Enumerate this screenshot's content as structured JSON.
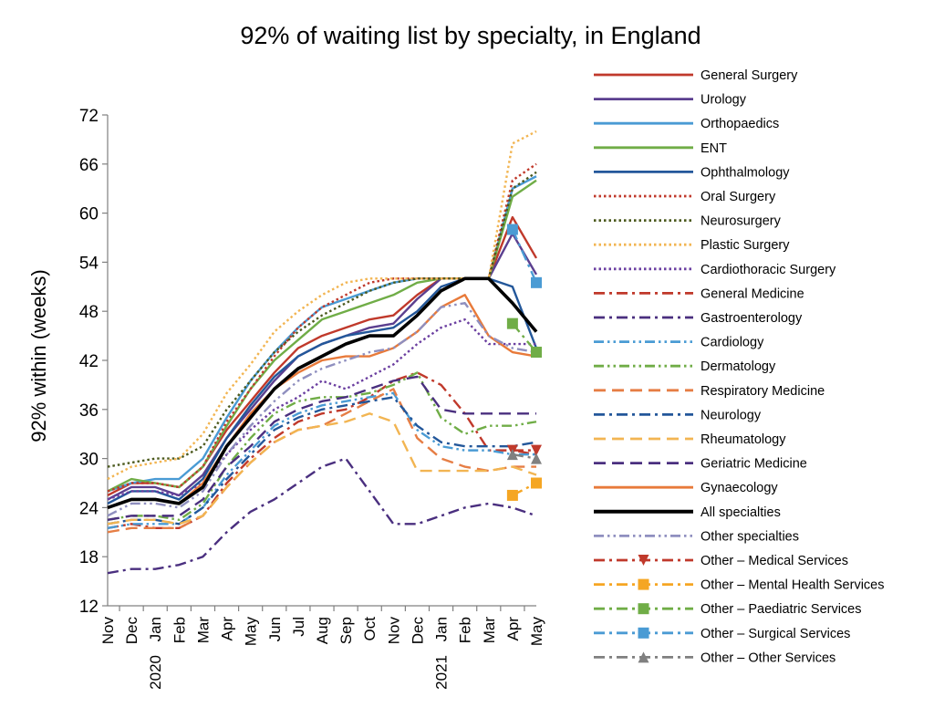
{
  "chart_data": {
    "type": "line",
    "title": "92% of waiting list by specialty, in England",
    "ylabel": "92% within (weeks)",
    "xlabel": "",
    "ylim": [
      12,
      72
    ],
    "yticks": [
      12,
      18,
      24,
      30,
      36,
      42,
      48,
      54,
      60,
      66,
      72
    ],
    "categories": [
      "Nov",
      "Dec",
      "Jan",
      "Feb",
      "Mar",
      "Apr",
      "May",
      "Jun",
      "Jul",
      "Aug",
      "Sep",
      "Oct",
      "Nov",
      "Dec",
      "Jan",
      "Feb",
      "Mar",
      "Apr",
      "May"
    ],
    "year_labels": [
      {
        "label": "2020",
        "at": "Jan"
      },
      {
        "label": "2021",
        "at": "Jan"
      }
    ],
    "grid": false,
    "legend_position": "right",
    "series": [
      {
        "name": "General Surgery",
        "color": "#c0392b",
        "dash": "solid",
        "values": [
          25.5,
          27,
          27,
          26.5,
          29,
          33.5,
          37,
          40.5,
          43.5,
          45,
          46,
          47,
          47.5,
          50,
          52,
          52,
          52,
          59.5,
          54.5
        ]
      },
      {
        "name": "Urology",
        "color": "#5b3f8f",
        "dash": "solid",
        "values": [
          25,
          26.5,
          26.5,
          25.5,
          28,
          32.5,
          36,
          39.5,
          42.5,
          44,
          45,
          46,
          46.5,
          49.5,
          52,
          52,
          52,
          57.5,
          52.5
        ]
      },
      {
        "name": "Orthopaedics",
        "color": "#4a9bd4",
        "dash": "solid",
        "values": [
          26,
          27,
          27.5,
          27.5,
          30,
          35,
          39.5,
          43,
          46,
          48.5,
          49.5,
          50.5,
          51.5,
          52,
          52,
          52,
          52,
          63,
          64.5
        ]
      },
      {
        "name": "ENT",
        "color": "#70ad47",
        "dash": "solid",
        "values": [
          26,
          27.5,
          27,
          26.5,
          29,
          34,
          38.5,
          42,
          44.5,
          47,
          48,
          49,
          50,
          51.5,
          52,
          52,
          52,
          62,
          64
        ]
      },
      {
        "name": "Ophthalmology",
        "color": "#23579a",
        "dash": "solid",
        "values": [
          24.5,
          26,
          26,
          25,
          27.5,
          32.5,
          36.5,
          40,
          42.5,
          44,
          45,
          45.5,
          46,
          48,
          51,
          52,
          52,
          51,
          43.5
        ]
      },
      {
        "name": "Oral Surgery",
        "color": "#c0392b",
        "dash": "dot",
        "values": [
          26,
          27,
          27,
          26.5,
          29,
          34.5,
          38.5,
          42.5,
          46,
          48.5,
          50,
          51.5,
          52,
          52,
          52,
          52,
          52,
          64,
          66
        ]
      },
      {
        "name": "Neurosurgery",
        "color": "#4c5a1e",
        "dash": "dot",
        "values": [
          29,
          29.5,
          30,
          30,
          31.5,
          36,
          39.5,
          43,
          45.5,
          47.5,
          49,
          50.5,
          51.5,
          52,
          52,
          52,
          52,
          63,
          65
        ]
      },
      {
        "name": "Plastic Surgery",
        "color": "#f2b552",
        "dash": "dot",
        "values": [
          27.5,
          29,
          29.5,
          30,
          33,
          38,
          41.5,
          45.5,
          48,
          50,
          51.5,
          52,
          52,
          52,
          52,
          52,
          52,
          68.5,
          70
        ]
      },
      {
        "name": "Cardiothoracic Surgery",
        "color": "#6b3fa0",
        "dash": "dot",
        "values": [
          25,
          26,
          26,
          25.5,
          27,
          30.5,
          33.5,
          36,
          37.5,
          39.5,
          38.5,
          40,
          41.5,
          44,
          46,
          47,
          44,
          44,
          44
        ]
      },
      {
        "name": "General Medicine",
        "color": "#c0392b",
        "dash": "dashdot",
        "values": [
          21.5,
          22,
          21.5,
          21.5,
          23,
          27,
          30,
          32.5,
          34.5,
          35.5,
          36,
          37.5,
          39.5,
          40.5,
          39,
          35.5,
          31,
          31,
          30.5
        ]
      },
      {
        "name": "Gastroenterology",
        "color": "#4a2f7f",
        "dash": "dashdot",
        "values": [
          16,
          16.5,
          16.5,
          17,
          18,
          21,
          23.5,
          25,
          27,
          29,
          30,
          26,
          22,
          22,
          23,
          24,
          24.5,
          24,
          23
        ]
      },
      {
        "name": "Cardiology",
        "color": "#4a9bd4",
        "dash": "dashdotdot",
        "values": [
          21.5,
          22,
          22,
          22,
          24,
          28,
          31,
          34,
          35.5,
          36.5,
          37,
          37.5,
          38,
          33.5,
          31.5,
          31,
          31,
          30.5,
          30.5
        ]
      },
      {
        "name": "Dermatology",
        "color": "#70ad47",
        "dash": "dashdotdot",
        "values": [
          22.5,
          23,
          23,
          22.5,
          24.5,
          29,
          32.5,
          35.5,
          37,
          37.5,
          37.5,
          38,
          39,
          40.5,
          35,
          33,
          34,
          34,
          34.5
        ]
      },
      {
        "name": "Respiratory Medicine",
        "color": "#e67e45",
        "dash": "dash",
        "values": [
          21,
          21.5,
          21.5,
          21.5,
          23,
          26.5,
          29.5,
          32,
          33.5,
          34,
          35.5,
          37,
          38.5,
          32.5,
          30,
          29,
          28.5,
          29,
          29
        ]
      },
      {
        "name": "Neurology",
        "color": "#23579a",
        "dash": "dashdot",
        "values": [
          22,
          22.5,
          22.5,
          22,
          24,
          27.5,
          30.5,
          33.5,
          35,
          36,
          36.5,
          37,
          37.5,
          34,
          32,
          31.5,
          31.5,
          31.5,
          32
        ]
      },
      {
        "name": "Rheumatology",
        "color": "#f2b552",
        "dash": "dash",
        "values": [
          22,
          22.5,
          22.5,
          22,
          23,
          26.5,
          29.5,
          32,
          33.5,
          34,
          34.5,
          35.5,
          34.5,
          28.5,
          28.5,
          28.5,
          28.5,
          29,
          28
        ]
      },
      {
        "name": "Geriatric Medicine",
        "color": "#4a2f7f",
        "dash": "dash",
        "values": [
          22.5,
          23,
          23,
          23,
          25,
          29,
          31.5,
          34.5,
          36,
          37,
          37.5,
          38.5,
          39.5,
          40,
          36,
          35.5,
          35.5,
          35.5,
          35.5
        ]
      },
      {
        "name": "Gynaecology",
        "color": "#e87a3a",
        "dash": "solid",
        "values": [
          24,
          25,
          25,
          24.5,
          27,
          31.5,
          35.5,
          38.5,
          40.5,
          42,
          42.5,
          42.5,
          43.5,
          45.5,
          48.5,
          50,
          45,
          43,
          42.5
        ]
      },
      {
        "name": "All specialties",
        "color": "#000000",
        "dash": "solid",
        "width": 3.6,
        "values": [
          24,
          25,
          25,
          24.5,
          26.5,
          31.5,
          35,
          38.5,
          41,
          42.5,
          44,
          45,
          45,
          47.5,
          50.5,
          52,
          52,
          49,
          45.5
        ]
      },
      {
        "name": "Other  specialties",
        "color": "#8f8fbf",
        "dash": "dashdotdot",
        "values": [
          23,
          24.5,
          24.5,
          24,
          26,
          30.5,
          34,
          37,
          39.5,
          41,
          42,
          43,
          43.5,
          45.5,
          48.5,
          49,
          45,
          43.5,
          43
        ]
      }
    ],
    "marker_series": [
      {
        "name": "Other  –  Medical Services",
        "color": "#c0392b",
        "marker": "triangle-down",
        "dash": "dashdot",
        "values": [
          null,
          null,
          null,
          null,
          null,
          null,
          null,
          null,
          null,
          null,
          null,
          null,
          null,
          null,
          null,
          null,
          null,
          31,
          31
        ]
      },
      {
        "name": "Other  –  Mental Health Services",
        "color": "#f5a623",
        "marker": "square",
        "dash": "dashdot",
        "values": [
          null,
          null,
          null,
          null,
          null,
          null,
          null,
          null,
          null,
          null,
          null,
          null,
          null,
          null,
          null,
          null,
          null,
          25.5,
          27
        ]
      },
      {
        "name": "Other  –  Paediatric Services",
        "color": "#70ad47",
        "marker": "square",
        "dash": "dashdot",
        "values": [
          null,
          null,
          null,
          null,
          null,
          null,
          null,
          null,
          null,
          null,
          null,
          null,
          null,
          null,
          null,
          null,
          null,
          46.5,
          43
        ]
      },
      {
        "name": "Other  –  Surgical Services",
        "color": "#4a9bd4",
        "marker": "square",
        "dash": "dashdot",
        "values": [
          null,
          null,
          null,
          null,
          null,
          null,
          null,
          null,
          null,
          null,
          null,
          null,
          null,
          null,
          null,
          null,
          null,
          58,
          51.5
        ]
      },
      {
        "name": "Other  –  Other Services",
        "color": "#808080",
        "marker": "triangle-up",
        "dash": "dashdot",
        "values": [
          null,
          null,
          null,
          null,
          null,
          null,
          null,
          null,
          null,
          null,
          null,
          null,
          null,
          null,
          null,
          null,
          null,
          30.5,
          30
        ]
      }
    ]
  }
}
